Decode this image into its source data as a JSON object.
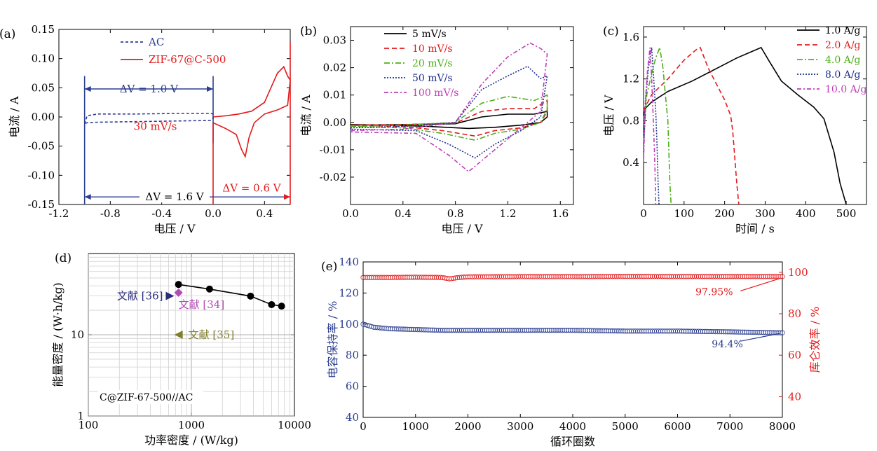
{
  "chart_data": [
    {
      "panel": "(a)",
      "type": "line",
      "xlabel": "电压 / V",
      "ylabel": "电流 / A",
      "xlim": [
        -1.2,
        0.6
      ],
      "ylim": [
        -0.15,
        0.15
      ],
      "xticks": [
        -1.2,
        -0.8,
        -0.4,
        0.0,
        0.4
      ],
      "xtick_labels": [
        "-1.2",
        "-0.8",
        "-0.4",
        "0.0",
        "0.4"
      ],
      "yticks": [
        -0.15,
        -0.1,
        -0.05,
        0.0,
        0.05,
        0.1,
        0.15
      ],
      "ytick_labels": [
        "-0.15",
        "-0.10",
        "-0.05",
        "0.00",
        "0.05",
        "0.10",
        "0.15"
      ],
      "legend": [
        "AC",
        "ZIF-67@C-500"
      ],
      "colors": [
        "#2b3d8f",
        "#e31a1c"
      ],
      "annotations": [
        "ΔV = 1.0 V",
        "30 mV/s",
        "ΔV = 0.6 V",
        "ΔV = 1.6 V"
      ],
      "series": [
        {
          "name": "AC",
          "style": "dashed",
          "x": [
            -1.0,
            -0.98,
            -0.9,
            -0.6,
            -0.3,
            -0.02,
            0.0,
            0.0,
            -0.02,
            -0.3,
            -0.6,
            -0.9,
            -0.98,
            -1.0,
            -1.0
          ],
          "y": [
            -0.012,
            0.002,
            0.005,
            0.005,
            0.006,
            0.006,
            0.005,
            -0.003,
            -0.006,
            -0.007,
            -0.008,
            -0.009,
            -0.01,
            -0.011,
            -0.012
          ]
        },
        {
          "name": "ZIF-67@C-500",
          "x": [
            0.0,
            0.1,
            0.2,
            0.3,
            0.4,
            0.45,
            0.5,
            0.55,
            0.58,
            0.6,
            0.58,
            0.5,
            0.4,
            0.32,
            0.28,
            0.25,
            0.22,
            0.18,
            0.1,
            0.05,
            0.0
          ],
          "y": [
            0.0,
            0.002,
            0.005,
            0.01,
            0.025,
            0.05,
            0.075,
            0.086,
            0.07,
            0.063,
            0.02,
            0.012,
            0.005,
            -0.01,
            -0.035,
            -0.068,
            -0.055,
            -0.03,
            -0.02,
            -0.015,
            -0.01
          ]
        }
      ]
    },
    {
      "panel": "(b)",
      "type": "line",
      "xlabel": "电压 / V",
      "ylabel": "电流 / A",
      "xlim": [
        0.0,
        1.7
      ],
      "ylim": [
        -0.03,
        0.035
      ],
      "xticks": [
        0.0,
        0.4,
        0.8,
        1.2,
        1.6
      ],
      "xtick_labels": [
        "0.0",
        "0.4",
        "0.8",
        "1.2",
        "1.6"
      ],
      "yticks": [
        -0.02,
        -0.01,
        0.0,
        0.01,
        0.02,
        0.03
      ],
      "ytick_labels": [
        "-0.02",
        "-0.01",
        "0.00",
        "0.01",
        "0.02",
        "0.03"
      ],
      "legend": [
        "5 mV/s",
        "10 mV/s",
        "20 mV/s",
        "50 mV/s",
        "100 mV/s"
      ],
      "colors": [
        "#000000",
        "#e31a1c",
        "#4daf1a",
        "#1f2f8f",
        "#c03cb8"
      ],
      "series": [
        {
          "name": "5 mV/s",
          "x": [
            0.0,
            0.4,
            0.8,
            1.0,
            1.2,
            1.4,
            1.5,
            1.5,
            1.45,
            1.3,
            1.1,
            0.9,
            0.6,
            0.3,
            0.0,
            0.0
          ],
          "y": [
            -0.001,
            -0.0008,
            -0.0005,
            0.002,
            0.003,
            0.003,
            0.004,
            0.002,
            0.0,
            -0.001,
            -0.0018,
            -0.0022,
            -0.0015,
            -0.001,
            -0.0008,
            -0.001
          ]
        },
        {
          "name": "10 mV/s",
          "x": [
            0.0,
            0.4,
            0.8,
            1.0,
            1.2,
            1.4,
            1.5,
            1.5,
            1.45,
            1.3,
            1.1,
            0.95,
            0.7,
            0.4,
            0.0,
            0.0
          ],
          "y": [
            -0.001,
            -0.0008,
            -0.0003,
            0.004,
            0.005,
            0.005,
            0.008,
            0.004,
            0.0,
            -0.002,
            -0.003,
            -0.005,
            -0.003,
            -0.0015,
            -0.001,
            -0.001
          ]
        },
        {
          "name": "20 mV/s",
          "x": [
            0.0,
            0.4,
            0.8,
            1.0,
            1.2,
            1.4,
            1.5,
            1.5,
            1.45,
            1.3,
            1.1,
            0.95,
            0.7,
            0.4,
            0.0,
            0.0
          ],
          "y": [
            -0.0015,
            -0.001,
            0.0,
            0.007,
            0.0095,
            0.008,
            0.01,
            0.005,
            0.0,
            -0.0025,
            -0.004,
            -0.0065,
            -0.004,
            -0.002,
            -0.0015,
            -0.0015
          ]
        },
        {
          "name": "50 mV/s",
          "x": [
            0.0,
            0.4,
            0.8,
            1.0,
            1.2,
            1.35,
            1.45,
            1.5,
            1.45,
            1.3,
            1.1,
            0.95,
            0.75,
            0.5,
            0.0,
            0.0
          ],
          "y": [
            -0.002,
            -0.0015,
            0.0,
            0.012,
            0.017,
            0.0205,
            0.016,
            0.017,
            0.002,
            -0.003,
            -0.008,
            -0.013,
            -0.008,
            -0.003,
            -0.0025,
            -0.002
          ]
        },
        {
          "name": "100 mV/s",
          "x": [
            0.0,
            0.4,
            0.8,
            1.0,
            1.2,
            1.37,
            1.45,
            1.5,
            1.45,
            1.3,
            1.1,
            0.9,
            0.75,
            0.5,
            0.0,
            0.0
          ],
          "y": [
            -0.003,
            -0.0025,
            0.0,
            0.014,
            0.024,
            0.029,
            0.027,
            0.025,
            0.004,
            -0.002,
            -0.01,
            -0.018,
            -0.012,
            -0.004,
            -0.0035,
            -0.003
          ]
        }
      ]
    },
    {
      "panel": "(c)",
      "type": "line",
      "xlabel": "时间 / s",
      "ylabel": "电压 / V",
      "xlim": [
        0,
        550
      ],
      "ylim": [
        0.0,
        1.7
      ],
      "xticks": [
        0,
        100,
        200,
        300,
        400,
        500
      ],
      "xtick_labels": [
        "0",
        "100",
        "200",
        "300",
        "400",
        "500"
      ],
      "yticks": [
        0.4,
        0.8,
        1.2,
        1.6
      ],
      "ytick_labels": [
        "0.4",
        "0.8",
        "1.2",
        "1.6"
      ],
      "legend": [
        "1.0 A/g",
        "2.0 A/g",
        "4.0 A/g",
        "8.0 A/g",
        "10.0 A/g"
      ],
      "colors": [
        "#000000",
        "#e31a1c",
        "#4daf1a",
        "#1f2f8f",
        "#c03cb8"
      ],
      "series": [
        {
          "name": "1.0 A/g",
          "x": [
            0,
            5,
            20,
            60,
            120,
            180,
            230,
            260,
            290,
            310,
            340,
            380,
            420,
            445,
            470,
            485,
            500
          ],
          "y": [
            0.85,
            0.92,
            0.98,
            1.08,
            1.18,
            1.3,
            1.4,
            1.45,
            1.5,
            1.37,
            1.18,
            1.05,
            0.93,
            0.82,
            0.5,
            0.2,
            0.0
          ]
        },
        {
          "name": "2.0 A/g",
          "x": [
            0,
            20,
            60,
            100,
            130,
            140,
            160,
            180,
            200,
            215,
            220,
            230,
            235
          ],
          "y": [
            0.9,
            1.05,
            1.2,
            1.38,
            1.48,
            1.5,
            1.3,
            1.15,
            1.0,
            0.85,
            0.7,
            0.2,
            0.0
          ]
        },
        {
          "name": "4.0 A/g",
          "x": [
            0,
            8,
            20,
            30,
            40,
            48,
            55,
            60,
            65,
            68
          ],
          "y": [
            0.6,
            1.05,
            1.25,
            1.4,
            1.5,
            1.3,
            1.0,
            0.8,
            0.2,
            0.0
          ]
        },
        {
          "name": "8.0 A/g",
          "x": [
            0,
            5,
            12,
            20,
            25,
            30,
            33,
            36,
            38
          ],
          "y": [
            0.5,
            1.0,
            1.3,
            1.5,
            1.2,
            0.9,
            0.6,
            0.2,
            0.0
          ]
        },
        {
          "name": "10.0 A/g",
          "x": [
            0,
            4,
            10,
            16,
            20,
            24,
            27,
            29,
            30
          ],
          "y": [
            0.4,
            0.95,
            1.3,
            1.5,
            1.2,
            0.8,
            0.5,
            0.2,
            0.0
          ]
        }
      ]
    },
    {
      "panel": "(d)",
      "type": "scatter",
      "xlabel": "功率密度 / (W/kg)",
      "ylabel": "能量密度 / (W·h/kg)",
      "xscale": "log",
      "yscale": "log",
      "xlim": [
        100,
        10000
      ],
      "ylim": [
        1,
        100
      ],
      "xticks": [
        100,
        1000,
        10000
      ],
      "xtick_labels": [
        "100",
        "1000",
        "10000"
      ],
      "yticks": [
        1,
        10
      ],
      "ytick_labels": [
        "1",
        "10"
      ],
      "grid": true,
      "inset_label": "C@ZIF-67-500//AC",
      "series": [
        {
          "name": "C@ZIF-67-500//AC",
          "color": "#000000",
          "x": [
            750,
            1500,
            3750,
            6000,
            7500
          ],
          "y": [
            41.6,
            36.5,
            29.9,
            23.5,
            22.5
          ]
        }
      ],
      "references": [
        {
          "label": "文献 [36]",
          "x": 620,
          "y": 30,
          "marker": "triangle-right",
          "color": "#2a2d78"
        },
        {
          "label": "文献 [34]",
          "x": 750,
          "y": 33,
          "marker": "diamond",
          "color": "#b24db3"
        },
        {
          "label": "文献 [35]",
          "x": 750,
          "y": 10,
          "marker": "triangle-left",
          "color": "#7f7f2a"
        }
      ]
    },
    {
      "panel": "(e)",
      "type": "line",
      "xlabel": "循环圈数",
      "ylabel": "电容保持率 / %",
      "ylabel_right": "库仑效率 / %",
      "xlim": [
        0,
        8000
      ],
      "ylim": [
        40,
        140
      ],
      "ylim_right": [
        30,
        105
      ],
      "xticks": [
        0,
        1000,
        2000,
        3000,
        4000,
        5000,
        6000,
        7000,
        8000
      ],
      "xtick_labels": [
        "0",
        "1000",
        "2000",
        "3000",
        "4000",
        "5000",
        "6000",
        "7000",
        "8000"
      ],
      "yticks": [
        40,
        60,
        80,
        100,
        120,
        140
      ],
      "ytick_labels": [
        "40",
        "60",
        "80",
        "100",
        "120",
        "140"
      ],
      "yticks_right": [
        40,
        60,
        80,
        100
      ],
      "ytick_labels_right": [
        "40",
        "60",
        "80",
        "100"
      ],
      "annotations": [
        "97.95%",
        "94.4%"
      ],
      "series": [
        {
          "name": "电容保持率",
          "axis": "left",
          "color": "#2b3d8f",
          "x": [
            0,
            200,
            500,
            1000,
            1500,
            2000,
            3000,
            4000,
            5000,
            6000,
            7000,
            8000
          ],
          "y": [
            100,
            98,
            97,
            96.5,
            96,
            96,
            96,
            96,
            95.5,
            95.5,
            95,
            94.4
          ]
        },
        {
          "name": "库仑效率",
          "axis": "right",
          "color": "#e31a1c",
          "x": [
            0,
            500,
            1000,
            1500,
            1650,
            1800,
            2000,
            3000,
            4000,
            5000,
            6000,
            7000,
            8000
          ],
          "y": [
            97.5,
            97.5,
            97.6,
            97.5,
            96.8,
            97.4,
            97.8,
            97.9,
            97.9,
            98.0,
            97.95,
            97.95,
            97.95
          ]
        }
      ]
    }
  ]
}
